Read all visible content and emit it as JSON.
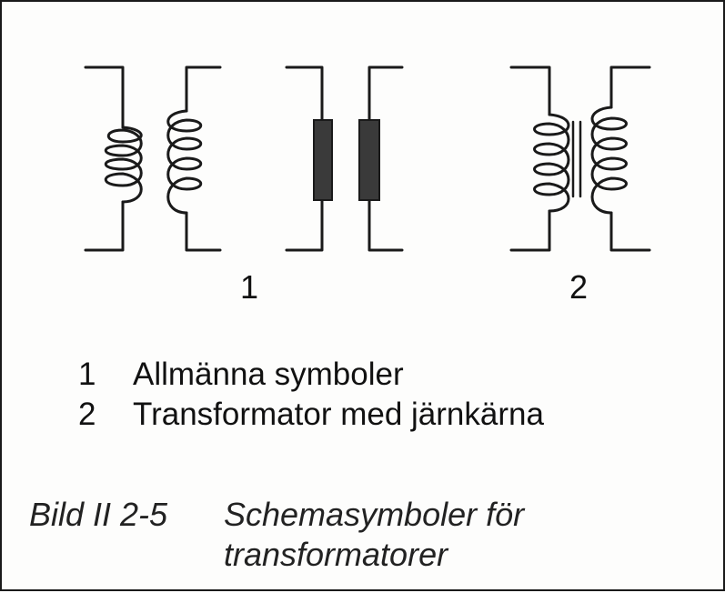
{
  "figure": {
    "panel_labels": [
      "1",
      "2"
    ],
    "legend": [
      {
        "num": "1",
        "text": "Allmänna symboler"
      },
      {
        "num": "2",
        "text": "Transformator med järnkärna"
      }
    ],
    "caption": {
      "id": "Bild II 2-5",
      "title_line1": "Schemasymboler för",
      "title_line2": "transformatorer"
    }
  },
  "colors": {
    "ink": "#1a1a1a",
    "core_fill": "#3a3a3a",
    "paper": "#fdfdfc"
  }
}
